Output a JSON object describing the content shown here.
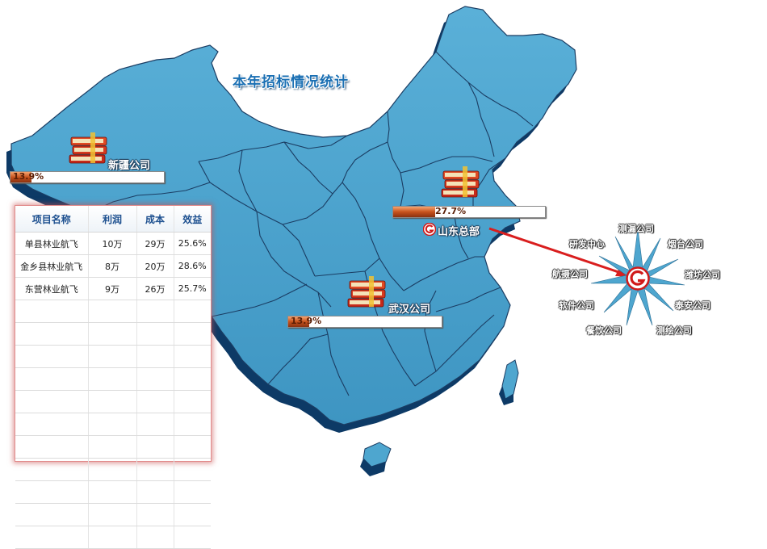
{
  "page": {
    "title": "本年招标情况统计"
  },
  "branches": [
    {
      "id": "xinjiang",
      "name": "新疆公司",
      "percent_text": "13.9%",
      "percent": 13.9
    },
    {
      "id": "shandong",
      "name": "",
      "percent_text": "27.7%",
      "percent": 27.7
    },
    {
      "id": "wuhan",
      "name": "武汉公司",
      "percent_text": "13.9%",
      "percent": 13.9
    }
  ],
  "headquarters": {
    "name": "山东总部",
    "icon": "company-logo-icon"
  },
  "table": {
    "headers": [
      "项目名称",
      "利润",
      "成本",
      "效益"
    ],
    "rows": [
      [
        "单县林业航飞",
        "10万",
        "29万",
        "25.6%"
      ],
      [
        "金乡县林业航飞",
        "8万",
        "20万",
        "28.6%"
      ],
      [
        "东营林业航飞",
        "9万",
        "26万",
        "25.7%"
      ]
    ],
    "empty_rows": 11
  },
  "subsidiaries": {
    "center_icon": "company-logo-icon",
    "items": [
      "测漏公司",
      "烟台公司",
      "潍坊公司",
      "泰安公司",
      "测绘公司",
      "餐饮公司",
      "软件公司",
      "航摄公司",
      "研发中心"
    ]
  },
  "colors": {
    "map_fill": "#4ea6cf",
    "map_shadow": "#0d3a66",
    "border_lines": "#1b3d63",
    "bar_fill": "#c7521d",
    "arrow": "#d91e1e",
    "star": "#4ea6cf"
  }
}
